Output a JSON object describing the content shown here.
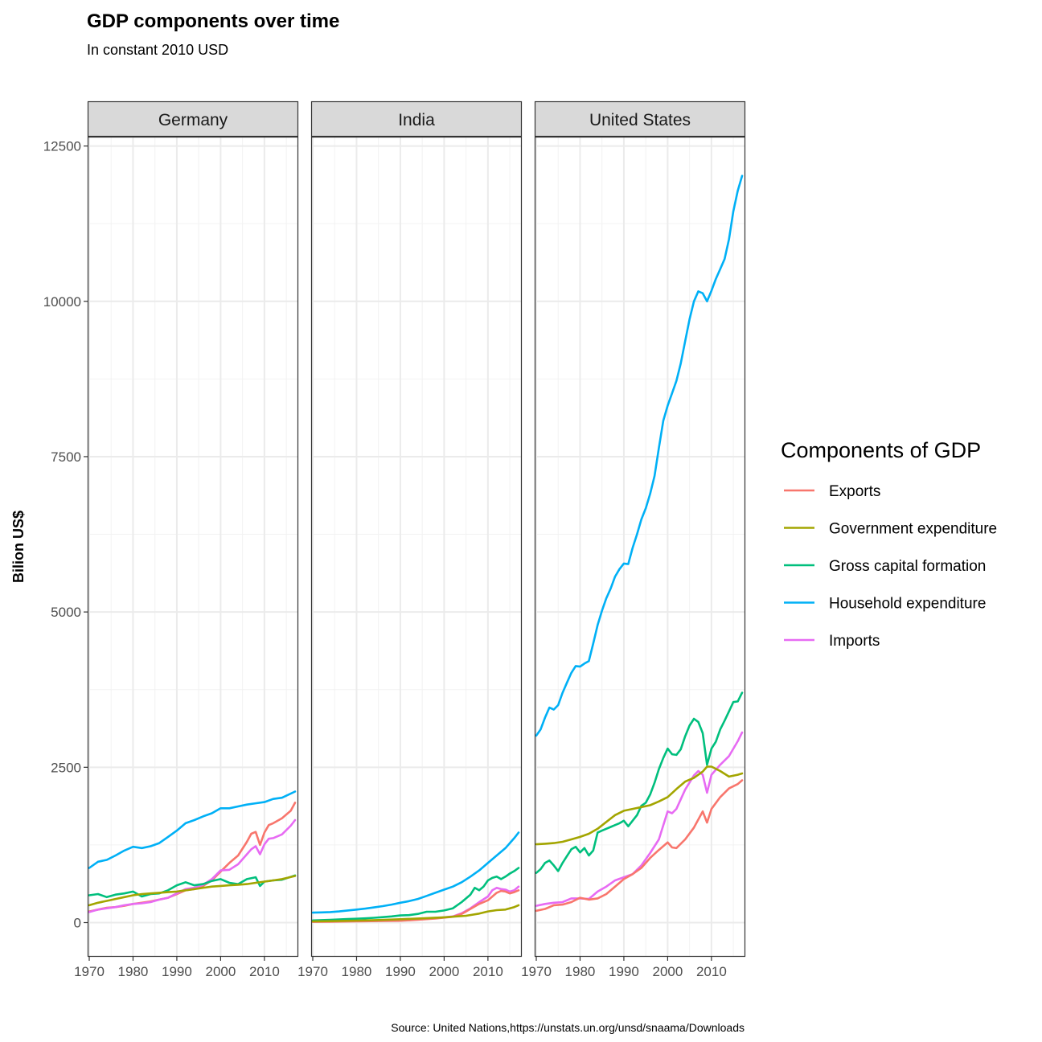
{
  "chart_data": {
    "type": "line",
    "title": "GDP components over time",
    "subtitle": "In constant 2010 USD",
    "ylabel": "Bilion US$",
    "xlabel": "",
    "caption": "Source: United Nations,https://unstats.un.org/unsd/snaama/Downloads",
    "xlim": [
      1970,
      2017
    ],
    "ylim": [
      -550,
      12650
    ],
    "x_ticks": [
      "1970",
      "1980",
      "1990",
      "2000",
      "2010"
    ],
    "y_ticks": [
      "0",
      "2500",
      "5000",
      "7500",
      "10000",
      "12500"
    ],
    "legend": {
      "title": "Components of GDP",
      "placement": "right",
      "entries": [
        "Exports",
        "Government expenditure",
        "Gross capital formation",
        "Household expenditure",
        "Imports"
      ]
    },
    "colors": {
      "Exports": "#F8766D",
      "Government expenditure": "#A3A500",
      "Gross capital formation": "#00BF7D",
      "Household expenditure": "#00B0F6",
      "Imports": "#E76BF3"
    },
    "panels": [
      {
        "name": "Germany",
        "series": [
          {
            "name": "Household expenditure",
            "x": [
              1970,
              1972,
              1974,
              1976,
              1978,
              1980,
              1982,
              1984,
              1986,
              1988,
              1990,
              1992,
              1994,
              1996,
              1998,
              2000,
              2002,
              2004,
              2006,
              2008,
              2010,
              2012,
              2014,
              2017
            ],
            "values": [
              880,
              980,
              1010,
              1080,
              1160,
              1220,
              1200,
              1230,
              1280,
              1380,
              1480,
              1600,
              1650,
              1710,
              1760,
              1840,
              1840,
              1870,
              1900,
              1920,
              1940,
              1990,
              2010,
              2110
            ]
          },
          {
            "name": "Exports",
            "x": [
              1970,
              1972,
              1974,
              1976,
              1978,
              1980,
              1982,
              1984,
              1986,
              1988,
              1990,
              1992,
              1994,
              1996,
              1998,
              2000,
              2002,
              2004,
              2006,
              2007,
              2008,
              2009,
              2010,
              2011,
              2012,
              2014,
              2016,
              2017
            ],
            "values": [
              180,
              210,
              240,
              250,
              270,
              300,
              320,
              340,
              370,
              400,
              460,
              520,
              540,
              590,
              680,
              820,
              960,
              1080,
              1300,
              1430,
              1460,
              1250,
              1450,
              1570,
              1600,
              1680,
              1800,
              1930
            ]
          },
          {
            "name": "Imports",
            "x": [
              1970,
              1972,
              1974,
              1976,
              1978,
              1980,
              1982,
              1984,
              1986,
              1988,
              1990,
              1992,
              1994,
              1996,
              1998,
              2000,
              2002,
              2004,
              2006,
              2007,
              2008,
              2009,
              2010,
              2011,
              2012,
              2014,
              2016,
              2017
            ],
            "values": [
              170,
              210,
              230,
              250,
              280,
              300,
              310,
              330,
              370,
              400,
              470,
              540,
              560,
              610,
              700,
              840,
              850,
              940,
              1100,
              1180,
              1230,
              1100,
              1260,
              1350,
              1360,
              1420,
              1560,
              1650
            ]
          },
          {
            "name": "Gross capital formation",
            "x": [
              1970,
              1972,
              1974,
              1976,
              1978,
              1980,
              1982,
              1984,
              1986,
              1988,
              1990,
              1992,
              1994,
              1996,
              1998,
              2000,
              2002,
              2004,
              2006,
              2008,
              2009,
              2010,
              2012,
              2014,
              2017
            ],
            "values": [
              440,
              460,
              410,
              450,
              470,
              500,
              420,
              460,
              470,
              520,
              600,
              650,
              600,
              620,
              670,
              700,
              640,
              620,
              700,
              730,
              590,
              660,
              680,
              690,
              760
            ]
          },
          {
            "name": "Government expenditure",
            "x": [
              1970,
              1972,
              1974,
              1976,
              1978,
              1980,
              1982,
              1984,
              1986,
              1988,
              1990,
              1992,
              1994,
              1996,
              1998,
              2000,
              2002,
              2004,
              2006,
              2008,
              2010,
              2012,
              2014,
              2017
            ],
            "values": [
              280,
              320,
              350,
              380,
              410,
              440,
              460,
              470,
              480,
              490,
              500,
              520,
              540,
              560,
              580,
              590,
              600,
              610,
              620,
              640,
              660,
              680,
              700,
              750
            ]
          }
        ]
      },
      {
        "name": "India",
        "series": [
          {
            "name": "Household expenditure",
            "x": [
              1970,
              1972,
              1974,
              1976,
              1978,
              1980,
              1982,
              1984,
              1986,
              1988,
              1990,
              1992,
              1994,
              1996,
              1998,
              2000,
              2002,
              2004,
              2006,
              2008,
              2010,
              2012,
              2014,
              2016,
              2017
            ],
            "values": [
              160,
              165,
              170,
              180,
              195,
              210,
              225,
              245,
              265,
              290,
              320,
              345,
              380,
              430,
              480,
              530,
              580,
              650,
              740,
              840,
              960,
              1080,
              1200,
              1360,
              1450
            ]
          },
          {
            "name": "Gross capital formation",
            "x": [
              1970,
              1972,
              1974,
              1976,
              1978,
              1980,
              1982,
              1984,
              1986,
              1988,
              1990,
              1992,
              1994,
              1996,
              1998,
              2000,
              2002,
              2004,
              2006,
              2007,
              2008,
              2009,
              2010,
              2011,
              2012,
              2013,
              2014,
              2015,
              2016,
              2017
            ],
            "values": [
              35,
              40,
              45,
              50,
              58,
              62,
              68,
              78,
              88,
              100,
              115,
              120,
              140,
              175,
              175,
              195,
              230,
              330,
              450,
              560,
              520,
              580,
              680,
              720,
              740,
              700,
              740,
              790,
              830,
              880
            ]
          },
          {
            "name": "Imports",
            "x": [
              1970,
              1974,
              1978,
              1982,
              1986,
              1990,
              1994,
              1998,
              2000,
              2002,
              2004,
              2006,
              2008,
              2010,
              2011,
              2012,
              2013,
              2014,
              2015,
              2016,
              2017
            ],
            "values": [
              15,
              18,
              22,
              26,
              30,
              35,
              50,
              70,
              85,
              100,
              150,
              230,
              330,
              420,
              520,
              560,
              540,
              530,
              500,
              520,
              580
            ]
          },
          {
            "name": "Exports",
            "x": [
              1970,
              1974,
              1978,
              1982,
              1986,
              1990,
              1994,
              1998,
              2000,
              2002,
              2004,
              2006,
              2008,
              2010,
              2012,
              2013,
              2014,
              2015,
              2016,
              2017
            ],
            "values": [
              12,
              14,
              18,
              22,
              26,
              30,
              45,
              65,
              80,
              95,
              140,
              220,
              300,
              360,
              480,
              510,
              500,
              470,
              490,
              520
            ]
          },
          {
            "name": "Government expenditure",
            "x": [
              1970,
              1975,
              1980,
              1985,
              1990,
              1995,
              2000,
              2005,
              2008,
              2010,
              2012,
              2014,
              2016,
              2017
            ],
            "values": [
              20,
              25,
              32,
              42,
              55,
              68,
              85,
              110,
              145,
              180,
              200,
              210,
              250,
              280
            ]
          }
        ]
      },
      {
        "name": "United States",
        "series": [
          {
            "name": "Household expenditure",
            "x": [
              1970,
              1971,
              1972,
              1973,
              1974,
              1975,
              1976,
              1977,
              1978,
              1979,
              1980,
              1981,
              1982,
              1983,
              1984,
              1985,
              1986,
              1987,
              1988,
              1989,
              1990,
              1991,
              1992,
              1993,
              1994,
              1995,
              1996,
              1997,
              1998,
              1999,
              2000,
              2001,
              2002,
              2003,
              2004,
              2005,
              2006,
              2007,
              2008,
              2009,
              2010,
              2011,
              2012,
              2013,
              2014,
              2015,
              2016,
              2017
            ],
            "values": [
              3010,
              3110,
              3300,
              3460,
              3430,
              3500,
              3700,
              3860,
              4020,
              4130,
              4120,
              4170,
              4210,
              4490,
              4790,
              5020,
              5220,
              5380,
              5570,
              5690,
              5780,
              5770,
              6030,
              6250,
              6490,
              6670,
              6900,
              7190,
              7640,
              8080,
              8320,
              8520,
              8720,
              9000,
              9360,
              9710,
              10000,
              10160,
              10130,
              10000,
              10170,
              10360,
              10520,
              10680,
              11000,
              11450,
              11780,
              12020
            ]
          },
          {
            "name": "Gross capital formation",
            "x": [
              1970,
              1971,
              1972,
              1973,
              1974,
              1975,
              1976,
              1977,
              1978,
              1979,
              1980,
              1981,
              1982,
              1983,
              1984,
              1985,
              1986,
              1987,
              1988,
              1989,
              1990,
              1991,
              1992,
              1993,
              1994,
              1995,
              1996,
              1997,
              1998,
              1999,
              2000,
              2001,
              2002,
              2003,
              2004,
              2005,
              2006,
              2007,
              2008,
              2009,
              2010,
              2011,
              2012,
              2013,
              2014,
              2015,
              2016,
              2017
            ],
            "values": [
              800,
              860,
              960,
              1000,
              920,
              830,
              960,
              1070,
              1180,
              1220,
              1130,
              1200,
              1080,
              1160,
              1450,
              1480,
              1510,
              1540,
              1570,
              1600,
              1640,
              1550,
              1640,
              1730,
              1880,
              1930,
              2060,
              2250,
              2470,
              2650,
              2800,
              2710,
              2700,
              2790,
              3000,
              3170,
              3280,
              3230,
              3050,
              2540,
              2800,
              2910,
              3110,
              3250,
              3400,
              3550,
              3560,
              3700
            ]
          },
          {
            "name": "Imports",
            "x": [
              1970,
              1972,
              1974,
              1976,
              1978,
              1980,
              1982,
              1984,
              1986,
              1988,
              1990,
              1992,
              1994,
              1996,
              1998,
              2000,
              2001,
              2002,
              2004,
              2006,
              2007,
              2008,
              2009,
              2010,
              2012,
              2014,
              2016,
              2017
            ],
            "values": [
              270,
              300,
              320,
              330,
              390,
              390,
              380,
              500,
              580,
              680,
              730,
              780,
              920,
              1120,
              1340,
              1790,
              1760,
              1830,
              2140,
              2370,
              2440,
              2380,
              2090,
              2380,
              2540,
              2680,
              2920,
              3060
            ]
          },
          {
            "name": "Government expenditure",
            "x": [
              1970,
              1972,
              1974,
              1976,
              1978,
              1980,
              1982,
              1984,
              1986,
              1988,
              1990,
              1992,
              1994,
              1996,
              1998,
              2000,
              2002,
              2004,
              2006,
              2008,
              2009,
              2010,
              2012,
              2014,
              2016,
              2017
            ],
            "values": [
              1260,
              1270,
              1280,
              1300,
              1340,
              1380,
              1430,
              1510,
              1620,
              1730,
              1800,
              1830,
              1860,
              1890,
              1950,
              2020,
              2150,
              2270,
              2330,
              2430,
              2510,
              2510,
              2440,
              2350,
              2380,
              2400
            ]
          },
          {
            "name": "Exports",
            "x": [
              1970,
              1972,
              1974,
              1976,
              1978,
              1980,
              1982,
              1984,
              1986,
              1988,
              1990,
              1992,
              1994,
              1996,
              1998,
              2000,
              2001,
              2002,
              2004,
              2006,
              2008,
              2009,
              2010,
              2012,
              2014,
              2016,
              2017
            ],
            "values": [
              190,
              220,
              280,
              290,
              330,
              400,
              370,
              390,
              460,
              580,
              700,
              780,
              880,
              1040,
              1170,
              1290,
              1210,
              1200,
              1340,
              1530,
              1790,
              1610,
              1830,
              2020,
              2160,
              2230,
              2290
            ]
          }
        ]
      }
    ]
  }
}
